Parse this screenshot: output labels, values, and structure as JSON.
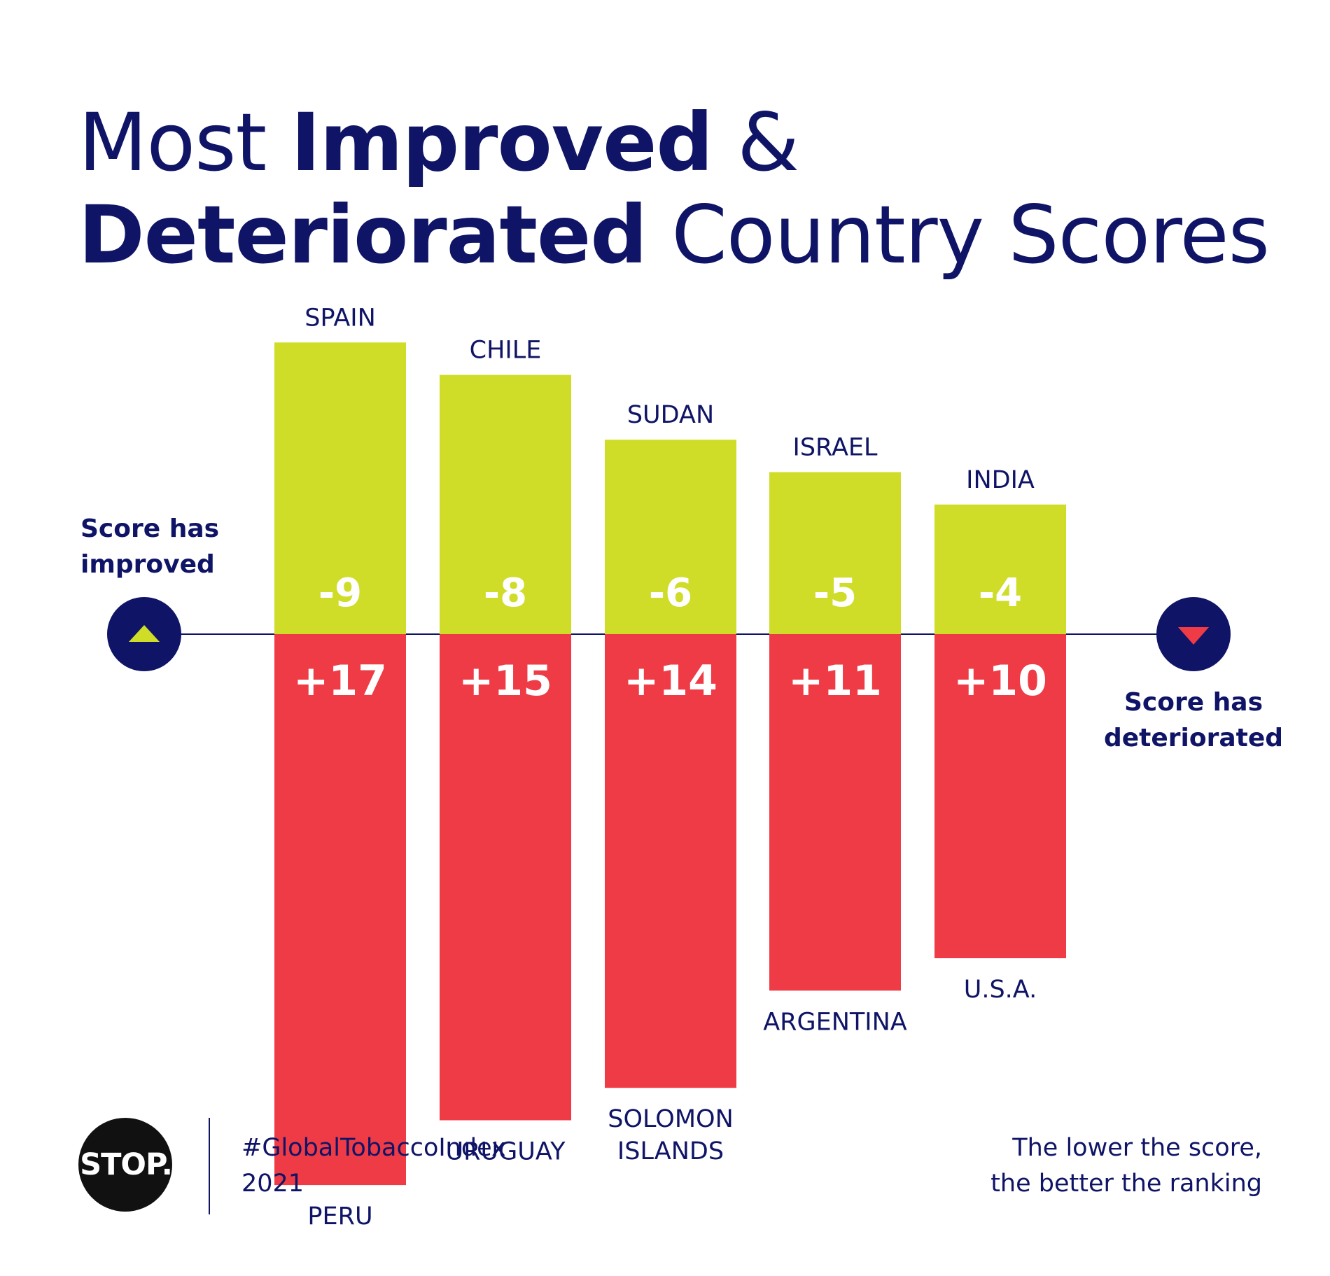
{
  "title": {
    "line1_regular": "Most",
    "line1_bold": "Improved",
    "line1_tail": "&",
    "line2_bold": "Deteriorated",
    "line2_regular": "Country Scores"
  },
  "legend": {
    "improved": [
      "Score has",
      "improved"
    ],
    "deteriorated": [
      "Score has",
      "deteriorated"
    ]
  },
  "chart_data": {
    "type": "bar",
    "ylim": [
      -9,
      17
    ],
    "grid": false,
    "series": [
      {
        "name": "Score has improved",
        "color": "#cfdd28",
        "categories": [
          "SPAIN",
          "CHILE",
          "SUDAN",
          "ISRAEL",
          "INDIA"
        ],
        "values": [
          -9,
          -8,
          -6,
          -5,
          -4
        ],
        "labels": [
          "-9",
          "-8",
          "-6",
          "-5",
          "-4"
        ]
      },
      {
        "name": "Score has deteriorated",
        "color": "#ef3b45",
        "categories": [
          "PERU",
          "URUGUAY",
          "SOLOMON ISLANDS",
          "ARGENTINA",
          "U.S.A."
        ],
        "category_lines": [
          [
            "PERU"
          ],
          [
            "URUGUAY"
          ],
          [
            "SOLOMON",
            "ISLANDS"
          ],
          [
            "ARGENTINA"
          ],
          [
            "U.S.A."
          ]
        ],
        "values": [
          17,
          15,
          14,
          11,
          10
        ],
        "labels": [
          "+17",
          "+15",
          "+14",
          "+11",
          "+10"
        ]
      }
    ]
  },
  "colors": {
    "navy": "#0f1466",
    "improved": "#cfdd28",
    "deteriorated": "#ef3b45"
  },
  "icons": {
    "improved": "triangle-up-icon",
    "deteriorated": "triangle-down-icon"
  },
  "footer": {
    "logo_text": "STOP.",
    "hashtag": "#GlobalTobaccoIndex",
    "year": "2021",
    "note": [
      "The lower the score,",
      "the better the ranking"
    ]
  }
}
